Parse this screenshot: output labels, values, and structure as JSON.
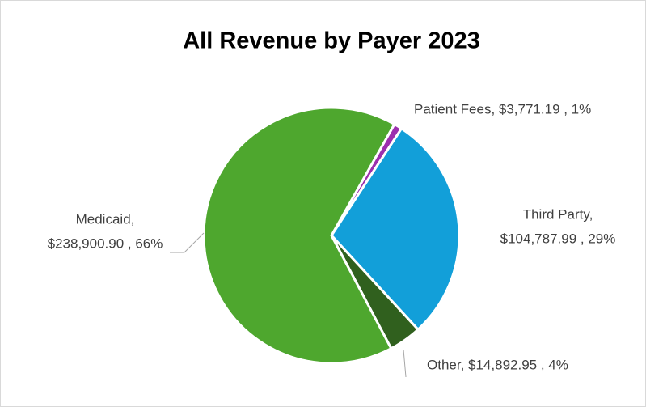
{
  "chart_data": {
    "type": "pie",
    "title": "All Revenue by Payer 2023",
    "categories": [
      "Patient Fees",
      "Third Party",
      "Other",
      "Medicaid"
    ],
    "values": [
      3771.19,
      104787.99,
      14892.95,
      238900.9
    ],
    "value_labels": [
      [
        "Patient Fees, $3,771.19 , 1%"
      ],
      [
        "Third Party,",
        "$104,787.99 , 29%"
      ],
      [
        "Other, $14,892.95 , 4%"
      ],
      [
        "Medicaid,",
        "$238,900.90 , 66%"
      ]
    ],
    "colors": [
      "#9b2fae",
      "#129fd9",
      "#30601e",
      "#4ea72e"
    ]
  }
}
